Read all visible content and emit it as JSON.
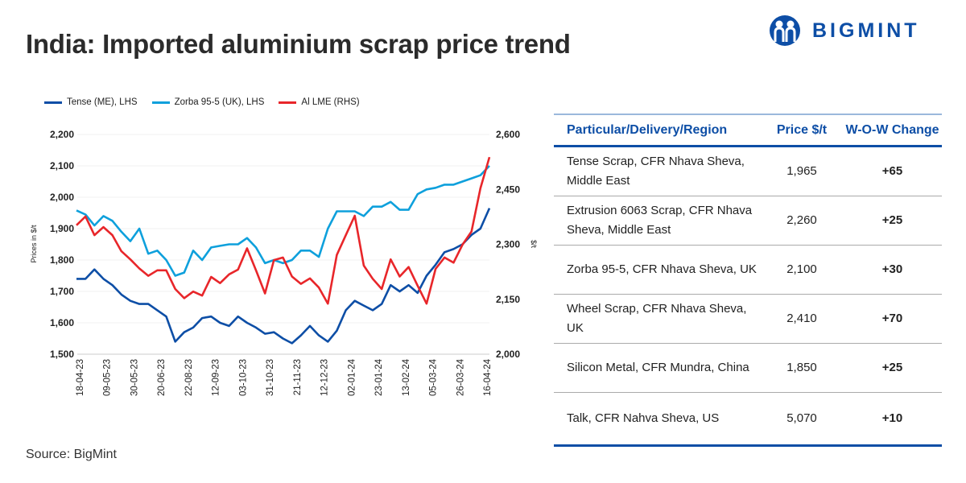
{
  "title": "India: Imported aluminium scrap price trend",
  "logo": {
    "text": "BIGMINT",
    "color": "#0d4ea6"
  },
  "source": "Source: BigMint",
  "chart_data": {
    "type": "line",
    "title": "",
    "ylabel": "Prices in $/t",
    "y2label": "$/t",
    "ylim": [
      1500,
      2200
    ],
    "y2lim": [
      2000,
      2600
    ],
    "yticks": [
      "1,500",
      "1,600",
      "1,700",
      "1,800",
      "1,900",
      "2,000",
      "2,100",
      "2,200"
    ],
    "y2ticks": [
      "2,000",
      "2,150",
      "2,300",
      "2,450",
      "2,600"
    ],
    "xtick_labels": [
      "18-04-23",
      "09-05-23",
      "30-05-23",
      "20-06-23",
      "22-08-23",
      "12-09-23",
      "03-10-23",
      "31-10-23",
      "21-11-23",
      "12-12-23",
      "02-01-24",
      "23-01-24",
      "13-02-24",
      "05-03-24",
      "26-03-24",
      "16-04-24"
    ],
    "grid": true,
    "legend": "top-left",
    "series": [
      {
        "name": "Tense (ME), LHS",
        "axis": "left",
        "color": "#0d4ea6",
        "values": [
          1740,
          1740,
          1770,
          1740,
          1720,
          1690,
          1670,
          1660,
          1660,
          1640,
          1620,
          1540,
          1570,
          1585,
          1615,
          1620,
          1600,
          1590,
          1620,
          1600,
          1585,
          1565,
          1570,
          1550,
          1535,
          1560,
          1590,
          1560,
          1540,
          1575,
          1640,
          1670,
          1655,
          1640,
          1660,
          1720,
          1700,
          1720,
          1695,
          1750,
          1785,
          1825,
          1835,
          1850,
          1880,
          1900,
          1965
        ]
      },
      {
        "name": "Zorba 95-5 (UK), LHS",
        "axis": "left",
        "color": "#0ea0dc",
        "values": [
          1958,
          1945,
          1910,
          1940,
          1925,
          1890,
          1860,
          1900,
          1820,
          1830,
          1800,
          1750,
          1760,
          1830,
          1800,
          1840,
          1845,
          1850,
          1850,
          1870,
          1840,
          1790,
          1800,
          1790,
          1800,
          1830,
          1830,
          1810,
          1900,
          1955,
          1955,
          1955,
          1940,
          1970,
          1970,
          1985,
          1960,
          1960,
          2010,
          2025,
          2030,
          2040,
          2040,
          2050,
          2060,
          2070,
          2100
        ]
      },
      {
        "name": "Al LME (RHS)",
        "axis": "right",
        "color": "#e8262a",
        "values": [
          2352,
          2376,
          2325,
          2347,
          2325,
          2281,
          2259,
          2234,
          2214,
          2229,
          2229,
          2178,
          2153,
          2171,
          2160,
          2211,
          2194,
          2218,
          2231,
          2289,
          2229,
          2166,
          2257,
          2264,
          2212,
          2192,
          2207,
          2182,
          2138,
          2271,
          2325,
          2378,
          2242,
          2206,
          2178,
          2259,
          2212,
          2238,
          2187,
          2138,
          2233,
          2264,
          2250,
          2299,
          2335,
          2453,
          2538
        ]
      }
    ]
  },
  "table": {
    "headers": [
      "Particular/Delivery/Region",
      "Price $/t",
      "W-O-W Change"
    ],
    "rows": [
      {
        "name": "Tense Scrap, CFR Nhava Sheva, Middle East",
        "price": "1,965",
        "change": "+65"
      },
      {
        "name": "Extrusion 6063 Scrap, CFR Nhava Sheva, Middle East",
        "price": "2,260",
        "change": "+25"
      },
      {
        "name": "Zorba 95-5, CFR Nhava Sheva, UK",
        "price": "2,100",
        "change": "+30"
      },
      {
        "name": "Wheel Scrap, CFR Nhava Sheva, UK",
        "price": "2,410",
        "change": "+70"
      },
      {
        "name": "Silicon Metal, CFR Mundra, China",
        "price": "1,850",
        "change": "+25"
      },
      {
        "name": "Talk, CFR Nahva Sheva, US",
        "price": "5,070",
        "change": "+10"
      }
    ],
    "change_color": "#1aa34a"
  }
}
